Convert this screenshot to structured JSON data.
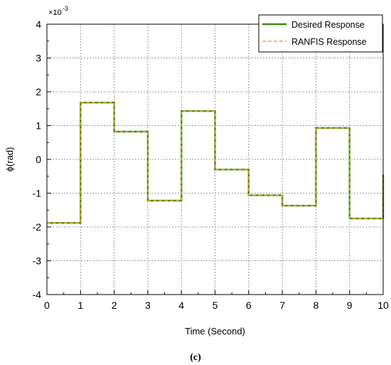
{
  "chart_data": {
    "type": "line",
    "xlabel": "Time (Second)",
    "ylabel": "ϕ(rad)",
    "y_multiplier_base": "×10",
    "y_multiplier_exponent": "-3",
    "xlim": [
      0,
      10
    ],
    "ylim": [
      -4,
      4
    ],
    "x_ticks": [
      0,
      1,
      2,
      3,
      4,
      5,
      6,
      7,
      8,
      9,
      10
    ],
    "y_ticks": [
      -4,
      -3,
      -2,
      -1,
      0,
      1,
      2,
      3,
      4
    ],
    "grid": true,
    "legend_position": "top-right",
    "caption": "(c)",
    "series": [
      {
        "name": "Desired Response",
        "color": "#3a8a12",
        "style": "solid",
        "x": [
          0,
          1,
          1,
          2,
          2,
          3,
          3,
          4,
          4,
          5,
          5,
          6,
          6,
          7,
          7,
          8,
          8,
          9,
          9,
          10,
          10
        ],
        "y": [
          -1.88,
          -1.88,
          1.68,
          1.68,
          0.82,
          0.82,
          -1.22,
          -1.22,
          1.43,
          1.43,
          -0.3,
          -0.3,
          -1.06,
          -1.06,
          -1.37,
          -1.37,
          0.93,
          0.93,
          -1.75,
          -1.75,
          -0.45
        ]
      },
      {
        "name": "RANFIS Response",
        "color": "#e8a33c",
        "style": "dashed",
        "x": [
          0,
          1,
          1,
          2,
          2,
          3,
          3,
          4,
          4,
          5,
          5,
          6,
          6,
          7,
          7,
          8,
          8,
          9,
          9,
          10,
          10
        ],
        "y": [
          -1.88,
          -1.88,
          1.68,
          1.68,
          0.82,
          0.82,
          -1.22,
          -1.22,
          1.43,
          1.43,
          -0.3,
          -0.3,
          -1.06,
          -1.06,
          -1.37,
          -1.37,
          0.93,
          0.93,
          -1.75,
          -1.75,
          -0.45
        ]
      }
    ]
  }
}
